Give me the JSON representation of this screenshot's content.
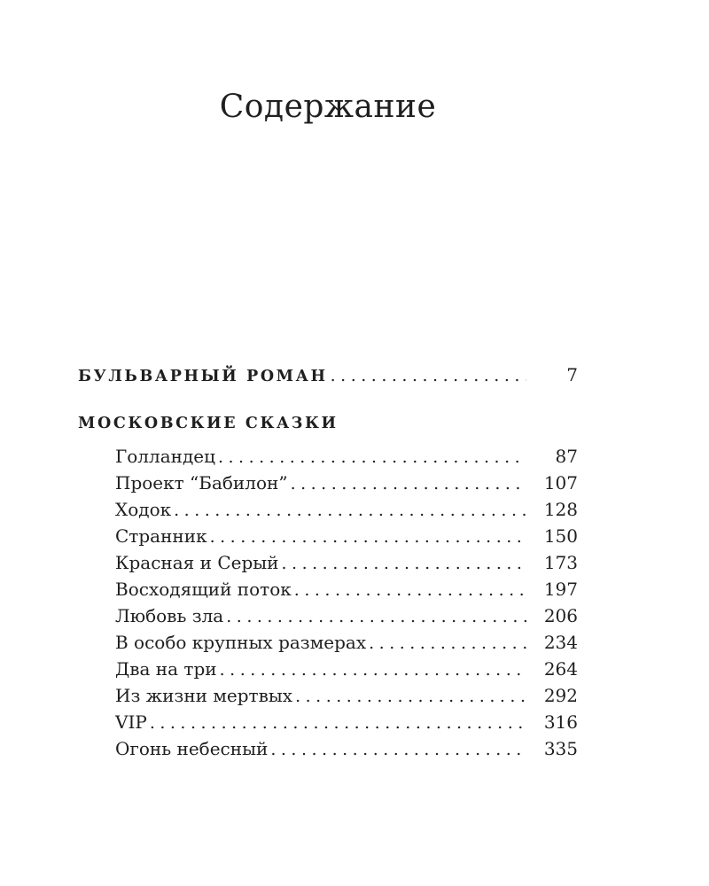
{
  "title": "Содержание",
  "text_color": "#1f1f1f",
  "background_color": "#ffffff",
  "toc": {
    "top_entry": {
      "label": "БУЛЬВАРНЫЙ РОМАН",
      "page": "7"
    },
    "section": {
      "header": "МОСКОВСКИЕ СКАЗКИ",
      "entries": [
        {
          "label": "Голландец",
          "page": "87"
        },
        {
          "label": "Проект “Бабилон”",
          "page": "107"
        },
        {
          "label": "Ходок",
          "page": "128"
        },
        {
          "label": "Странник",
          "page": "150"
        },
        {
          "label": "Красная и Серый",
          "page": "173"
        },
        {
          "label": "Восходящий поток",
          "page": "197"
        },
        {
          "label": "Любовь зла",
          "page": "206"
        },
        {
          "label": "В особо крупных размерах",
          "page": "234"
        },
        {
          "label": "Два на три",
          "page": "264"
        },
        {
          "label": "Из жизни мертвых",
          "page": "292"
        },
        {
          "label": "VIP",
          "page": "316"
        },
        {
          "label": "Огонь небесный",
          "page": "335"
        }
      ]
    }
  }
}
